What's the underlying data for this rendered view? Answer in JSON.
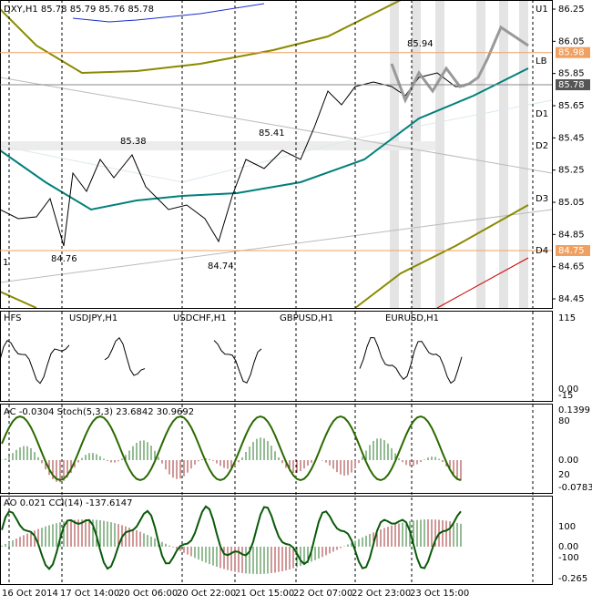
{
  "header": "DXY,H1 85.78 85.79 85.76 85.78",
  "main": {
    "ylim": [
      84.45,
      86.25
    ],
    "yticks": [
      86.25,
      86.05,
      85.85,
      85.65,
      85.45,
      85.25,
      85.05,
      84.85,
      84.65,
      84.45
    ],
    "level_tags": [
      85.98,
      84.75
    ],
    "current_tag": 85.78,
    "levels": [
      "U1",
      "LB",
      "D1",
      "D2",
      "D3",
      "D4"
    ],
    "annotations": [
      85.94,
      85.38,
      85.41,
      84.76,
      84.74
    ],
    "corner": "1"
  },
  "panel_hfs": {
    "title": "HFS",
    "symbols": [
      "USDJPY,H1",
      "USDCHF,H1",
      "GBPUSD,H1",
      "EURUSD,H1"
    ],
    "axis": [
      "115",
      "0.00",
      "-15"
    ]
  },
  "panel_ac": {
    "title": "AC -0.0304 Stoch(5,3,3) 23.6842 30.9692",
    "axis": [
      "0.1399",
      "80",
      "0.00",
      "20",
      "-0.0783"
    ]
  },
  "panel_ao": {
    "title": "AO 0.021 CCI(14) -137.6147",
    "axis": [
      "100",
      "0.00",
      "-100",
      "-0.265"
    ]
  },
  "time_axis": [
    "16 Oct 2014",
    "17 Oct 14:00",
    "20 Oct 06:00",
    "20 Oct 22:00",
    "21 Oct 15:00",
    "22 Oct 07:00",
    "22 Oct 23:00",
    "23 Oct 15:00"
  ]
}
